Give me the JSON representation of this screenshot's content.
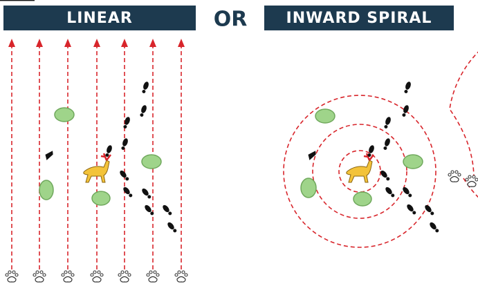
{
  "header": {
    "left": "LINEAR",
    "middle": "OR",
    "right": "INWARD SPIRAL"
  }
}
